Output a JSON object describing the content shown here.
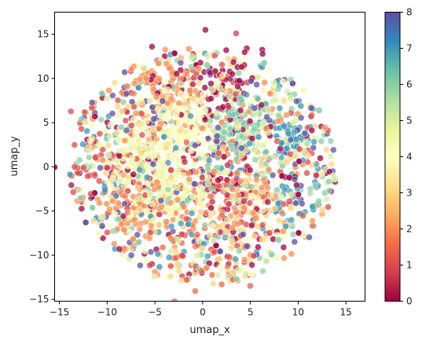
{
  "chart_data": {
    "type": "scatter",
    "xlabel": "umap_x",
    "ylabel": "umap_y",
    "xlim": [
      -15.5,
      17
    ],
    "ylim": [
      -15.2,
      17.5
    ],
    "x_ticks": [
      -15,
      -10,
      -5,
      0,
      5,
      10,
      15
    ],
    "y_ticks": [
      -15,
      -10,
      -5,
      0,
      5,
      10,
      15
    ],
    "colorbar": {
      "colormap": "Spectral",
      "min": 0,
      "max": 8,
      "ticks": [
        0,
        1,
        2,
        3,
        4,
        5,
        6,
        7,
        8
      ],
      "colors": [
        "#9e0142",
        "#d53e4f",
        "#f46d43",
        "#fdae61",
        "#fee08b",
        "#ffffbf",
        "#e6f598",
        "#abdda4",
        "#66c2a5",
        "#3288bd",
        "#5e4fa2"
      ]
    },
    "point_count_approx": 2400,
    "point_alpha": 0.75,
    "clusters": [
      {
        "label": 4,
        "center": [
          -2.0,
          5.0
        ],
        "spread": 1.8,
        "weight": 1.6
      },
      {
        "label": 4.5,
        "center": [
          -3.5,
          -2.0
        ],
        "spread": 2.2,
        "weight": 1.5
      },
      {
        "label": 4.5,
        "center": [
          -7.0,
          2.0
        ],
        "spread": 2.0,
        "weight": 1.0
      },
      {
        "label": 2,
        "center": [
          -4.5,
          8.5
        ],
        "spread": 1.8,
        "weight": 0.9
      },
      {
        "label": 2,
        "center": [
          -6.0,
          -4.5
        ],
        "spread": 2.0,
        "weight": 0.9
      },
      {
        "label": 2,
        "center": [
          3.5,
          -3.5
        ],
        "spread": 2.0,
        "weight": 0.7
      },
      {
        "label": 6,
        "center": [
          3.0,
          4.0
        ],
        "spread": 2.0,
        "weight": 0.8
      },
      {
        "label": 7,
        "center": [
          9.0,
          3.0
        ],
        "spread": 1.3,
        "weight": 0.6
      },
      {
        "label": 7,
        "center": [
          10.0,
          -4.0
        ],
        "spread": 1.5,
        "weight": 0.35
      },
      {
        "label": 0,
        "center": [
          1.5,
          9.5
        ],
        "spread": 2.5,
        "weight": 0.6
      },
      {
        "label": 0.5,
        "center": [
          2.0,
          -2.0
        ],
        "spread": 2.5,
        "weight": 0.6
      },
      {
        "label": 8,
        "center": [
          -5.0,
          6.0
        ],
        "spread": 0.8,
        "weight": 0.15
      },
      {
        "label": 3,
        "center": [
          4.5,
          -4.5
        ],
        "spread": 2.0,
        "weight": 0.4
      },
      {
        "label": 5,
        "center": [
          6.0,
          6.0
        ],
        "spread": 2.5,
        "weight": 0.5
      },
      {
        "label": 1,
        "center": [
          -10.0,
          0.0
        ],
        "spread": 2.5,
        "weight": 0.4
      },
      {
        "label": 1.5,
        "center": [
          0.0,
          -10.0
        ],
        "spread": 2.5,
        "weight": 0.4
      }
    ]
  }
}
